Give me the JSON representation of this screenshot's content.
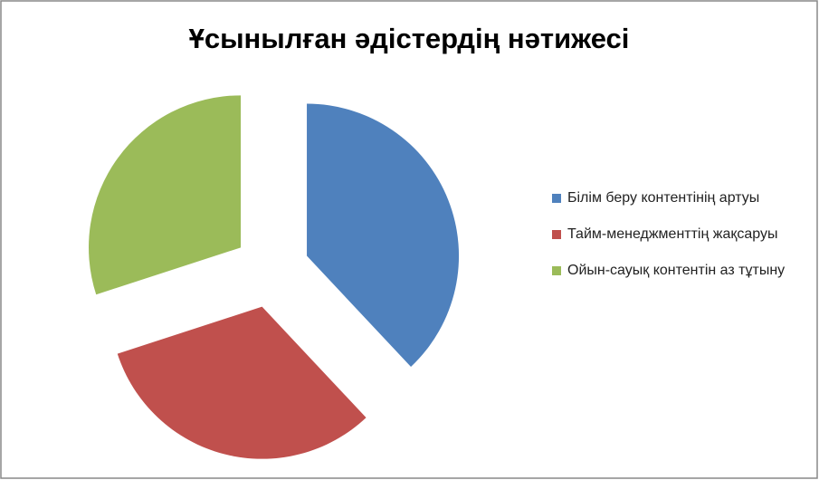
{
  "chart_data": {
    "type": "pie",
    "title": "Ұсынылған әдістердің нәтижесі",
    "categories": [
      "Білім беру контентінің артуы",
      "Тайм-менеджменттің жақсаруы",
      "Ойын-сауық контентін аз тұтыну"
    ],
    "values": [
      38,
      32,
      30
    ],
    "colors": [
      "#4f81bd",
      "#c0504d",
      "#9bbb59"
    ],
    "legend": "right"
  }
}
